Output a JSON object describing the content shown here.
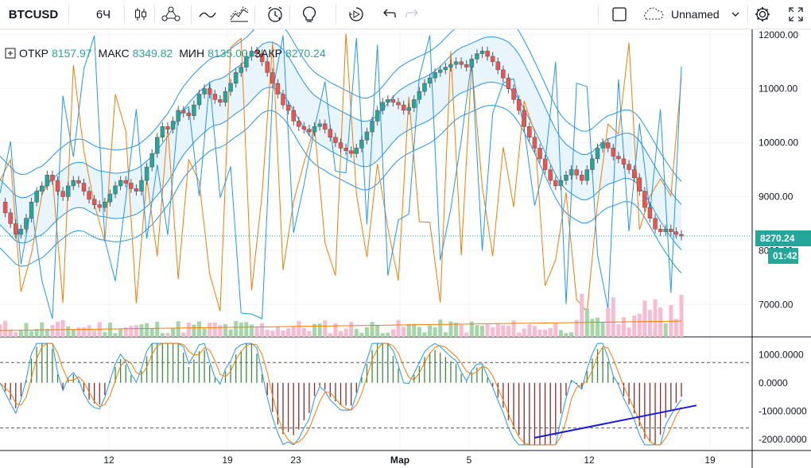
{
  "toolbar": {
    "symbol": "BTCUSD",
    "interval": "6Ч",
    "layout_name": "Unnamed",
    "icons": [
      "candles-icon",
      "indicators-icon",
      "line-tool-icon",
      "fib-tool-icon",
      "alert-icon",
      "idea-icon",
      "replay-icon",
      "undo-icon",
      "redo-icon",
      "square-icon",
      "cloud-icon",
      "chevron-down-icon",
      "settings-icon",
      "fullscreen-icon"
    ]
  },
  "legend": {
    "open_label": "ОТКР",
    "open_value": "8157.97",
    "high_label": "МАКС",
    "high_value": "8349.82",
    "low_label": "МИН",
    "low_value": "8135.00",
    "close_label": "ЗАКР",
    "close_value": "8270.24"
  },
  "price_axis": {
    "ticks": [
      "12000.00",
      "11000.00",
      "10000.00",
      "9000.00",
      "8000.00",
      "7000.00"
    ],
    "ticks_values": [
      12000,
      11000,
      10000,
      9000,
      8000,
      7000
    ],
    "current_price": "8270.24",
    "countdown": "01:42"
  },
  "osc_axis": {
    "ticks": [
      "1000.0000",
      "0.0000",
      "-1000.0000",
      "-2000.0000"
    ],
    "ticks_values": [
      1000,
      0,
      -1000,
      -2000
    ]
  },
  "time_axis": {
    "labels": [
      "12",
      "19",
      "23",
      "Мар",
      "5",
      "12",
      "19"
    ]
  },
  "colors": {
    "up": "#26a69a",
    "down": "#ef5350",
    "blue": "#2196f3",
    "orange": "#f57c00",
    "trend": "#1a1adc",
    "band_fill": "#e3f2fd",
    "badge_price": "#26a69a",
    "badge_time": "#26a69a"
  },
  "chart_data": {
    "type": "candlestick",
    "symbol": "BTCUSD",
    "interval": "6Ч",
    "ylim": [
      6400,
      12100
    ],
    "osc_ylim": [
      -2400,
      1600
    ],
    "closes": [
      8900,
      8700,
      8500,
      8300,
      8400,
      8600,
      8900,
      9100,
      9200,
      9400,
      9300,
      9100,
      9000,
      9200,
      9300,
      9250,
      9100,
      8950,
      8850,
      8800,
      8900,
      9050,
      9200,
      9300,
      9250,
      9150,
      9100,
      9300,
      9550,
      9800,
      10100,
      10300,
      10250,
      10400,
      10600,
      10550,
      10500,
      10700,
      10900,
      11000,
      10900,
      10800,
      10750,
      10950,
      11100,
      11300,
      11400,
      11600,
      11700,
      11650,
      11500,
      11300,
      11100,
      10900,
      10700,
      10600,
      10400,
      10300,
      10250,
      10200,
      10300,
      10350,
      10250,
      10100,
      10000,
      9900,
      9850,
      9800,
      9900,
      10050,
      10200,
      10400,
      10600,
      10750,
      10800,
      10750,
      10700,
      10600,
      10650,
      10800,
      10950,
      11100,
      11200,
      11300,
      11350,
      11400,
      11450,
      11500,
      11450,
      11400,
      11550,
      11650,
      11700,
      11600,
      11500,
      11350,
      11200,
      11000,
      10800,
      10600,
      10300,
      10100,
      9900,
      9700,
      9500,
      9300,
      9200,
      9300,
      9400,
      9500,
      9400,
      9300,
      9500,
      9700,
      9900,
      10000,
      9900,
      9750,
      9700,
      9600,
      9500,
      9350,
      9100,
      8800,
      8600,
      8400,
      8350,
      8400,
      8350,
      8300,
      8270
    ]
  }
}
